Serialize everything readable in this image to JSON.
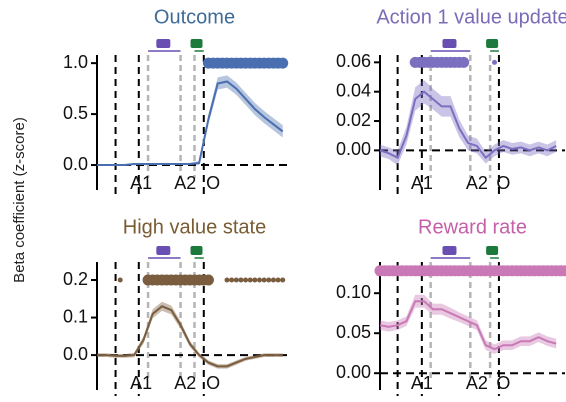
{
  "shared_y_label": "Beta coefficient (z-score)",
  "chart_data": [
    {
      "type": "line",
      "title": "Outcome",
      "title_color": "#3f6c97",
      "x": [
        0,
        2,
        4,
        6,
        8,
        10,
        12,
        14,
        16,
        18,
        20,
        22,
        24,
        26,
        28,
        30,
        32,
        34,
        36,
        38,
        40
      ],
      "series": [
        {
          "color": "#4a6fb0",
          "values": [
            0,
            0,
            0,
            0,
            0.01,
            0.01,
            0.01,
            0.01,
            0.01,
            0.01,
            0.01,
            0.02,
            0.45,
            0.8,
            0.82,
            0.75,
            0.65,
            0.55,
            0.47,
            0.4,
            0.33
          ],
          "errors": [
            0.01,
            0.01,
            0.01,
            0.01,
            0.01,
            0.01,
            0.01,
            0.01,
            0.01,
            0.01,
            0.01,
            0.02,
            0.05,
            0.06,
            0.06,
            0.06,
            0.06,
            0.06,
            0.06,
            0.06,
            0.06
          ]
        }
      ],
      "xlim": [
        0,
        42
      ],
      "ylim": [
        -0.245,
        1.08
      ],
      "yticks": [
        {
          "value": 0,
          "label": "0.0"
        },
        0.5,
        {
          "value": 1,
          "label": "1.0"
        }
      ],
      "xticks": [
        {
          "value": 9.5,
          "label": "A1"
        },
        {
          "value": 19,
          "label": "A2"
        },
        {
          "value": 25,
          "label": "O"
        }
      ],
      "event_lines": {
        "black": [
          4,
          9,
          23
        ],
        "gray": [
          11,
          18,
          21
        ]
      },
      "significance": {
        "level": 1,
        "large_x": [
          24,
          25,
          26,
          27,
          28,
          29,
          30,
          31,
          32,
          33,
          34,
          35,
          36,
          37,
          38,
          39,
          40
        ],
        "small_x": []
      }
    },
    {
      "type": "line",
      "title": "Action 1 value update",
      "title_color": "#7b6bb8",
      "x": [
        0,
        2,
        4,
        6,
        8,
        10,
        12,
        14,
        16,
        18,
        20,
        22,
        24,
        26,
        28,
        30,
        32,
        34,
        36,
        38,
        40
      ],
      "series": [
        {
          "color": "#7b6fc0",
          "values": [
            0,
            -0.002,
            -0.005,
            0.01,
            0.035,
            0.04,
            0.035,
            0.03,
            0.03,
            0.015,
            0.005,
            0.003,
            -0.005,
            0,
            0.003,
            0.001,
            0.002,
            0,
            0.002,
            0,
            0.003
          ],
          "errors": [
            0.004,
            0.004,
            0.005,
            0.006,
            0.008,
            0.008,
            0.007,
            0.007,
            0.007,
            0.006,
            0.005,
            0.005,
            0.004,
            0.004,
            0.004,
            0.004,
            0.004,
            0.004,
            0.004,
            0.004,
            0.004
          ]
        }
      ],
      "xlim": [
        0,
        42
      ],
      "ylim": [
        -0.027,
        0.065
      ],
      "yticks": [
        {
          "value": 0,
          "label": "0.00"
        },
        0.02,
        0.04,
        0.06
      ],
      "xticks": [
        {
          "value": 9.5,
          "label": "A1"
        },
        {
          "value": 22,
          "label": "A2"
        },
        {
          "value": 28,
          "label": "O"
        }
      ],
      "event_lines": {
        "black": [
          4,
          9.5,
          27
        ],
        "gray": [
          11.5,
          20.5,
          25
        ]
      },
      "significance": {
        "level": 0.06,
        "large_x": [
          8,
          9,
          10,
          11,
          12,
          13,
          14,
          15,
          16,
          17,
          18,
          19
        ],
        "small_x": [
          26
        ]
      }
    },
    {
      "type": "line",
      "title": "High value state",
      "title_color": "#7a5c33",
      "x": [
        0,
        2,
        4,
        6,
        8,
        10,
        12,
        14,
        16,
        18,
        20,
        22,
        24,
        26,
        28,
        30,
        32,
        34,
        36,
        38,
        40
      ],
      "series": [
        {
          "color": "#7a5c3e",
          "values": [
            0,
            0,
            -0.002,
            -0.002,
            0,
            0.04,
            0.11,
            0.13,
            0.12,
            0.08,
            0.03,
            0,
            -0.02,
            -0.03,
            -0.03,
            -0.02,
            -0.01,
            -0.005,
            0,
            0,
            0
          ],
          "errors": [
            0.005,
            0.005,
            0.005,
            0.005,
            0.006,
            0.01,
            0.012,
            0.012,
            0.012,
            0.01,
            0.008,
            0.006,
            0.006,
            0.006,
            0.006,
            0.006,
            0.005,
            0.005,
            0.005,
            0.005,
            0.005
          ]
        }
      ],
      "xlim": [
        0,
        42
      ],
      "ylim": [
        -0.093,
        0.248
      ],
      "yticks": [
        {
          "value": 0,
          "label": "0.0"
        },
        0.1,
        0.2
      ],
      "xticks": [
        {
          "value": 9.5,
          "label": "A1"
        },
        {
          "value": 19,
          "label": "A2"
        },
        {
          "value": 25,
          "label": "O"
        }
      ],
      "event_lines": {
        "black": [
          4,
          9,
          23
        ],
        "gray": [
          11,
          18,
          21
        ]
      },
      "significance": {
        "level": 0.2,
        "large_x": [
          11,
          12,
          13,
          14,
          15,
          16,
          17,
          18,
          19,
          20,
          21,
          22,
          23,
          24
        ],
        "small_x": [
          5,
          28,
          29,
          30,
          31,
          32,
          33,
          34,
          35,
          36,
          37,
          38,
          39,
          40
        ]
      }
    },
    {
      "type": "line",
      "title": "Reward rate",
      "title_color": "#c55fa8",
      "x": [
        0,
        2,
        4,
        6,
        8,
        10,
        12,
        14,
        16,
        18,
        20,
        22,
        24,
        26,
        28,
        30,
        32,
        34,
        36,
        38,
        40
      ],
      "series": [
        {
          "color": "#c979b5",
          "values": [
            0.06,
            0.058,
            0.06,
            0.065,
            0.09,
            0.09,
            0.08,
            0.08,
            0.075,
            0.07,
            0.065,
            0.06,
            0.035,
            0.03,
            0.035,
            0.035,
            0.04,
            0.04,
            0.045,
            0.04,
            0.037
          ],
          "errors": [
            0.006,
            0.006,
            0.006,
            0.006,
            0.008,
            0.008,
            0.007,
            0.007,
            0.007,
            0.006,
            0.006,
            0.006,
            0.006,
            0.006,
            0.006,
            0.006,
            0.006,
            0.006,
            0.006,
            0.006,
            0.006
          ]
        }
      ],
      "xlim": [
        0,
        42
      ],
      "ylim": [
        -0.021,
        0.139
      ],
      "yticks": [
        {
          "value": 0,
          "label": "0.00"
        },
        0.05,
        {
          "value": 0.1,
          "label": "0.10"
        }
      ],
      "xticks": [
        {
          "value": 9.5,
          "label": "A1"
        },
        {
          "value": 22,
          "label": "A2"
        },
        {
          "value": 28,
          "label": "O"
        }
      ],
      "event_lines": {
        "black": [
          4,
          9.5,
          27
        ],
        "gray": [
          11.5,
          20.5,
          25
        ]
      },
      "significance": {
        "level": 0.128,
        "large_x": [
          0,
          1,
          2,
          3,
          4,
          5,
          6,
          7,
          8,
          9,
          10,
          11,
          12,
          13,
          14,
          15,
          16,
          17,
          18,
          19,
          20,
          21,
          22,
          23,
          24,
          25,
          26,
          27,
          28,
          29,
          30,
          31,
          32,
          33,
          34,
          35,
          36,
          37,
          38,
          39,
          40,
          41,
          42
        ],
        "small_x": []
      }
    }
  ]
}
